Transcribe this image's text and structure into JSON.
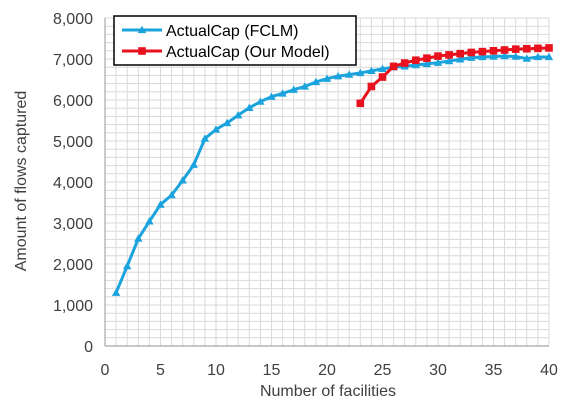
{
  "chart_data": {
    "type": "line",
    "title": "",
    "xlabel": "Number of facilities",
    "ylabel": "Amount of flows captured",
    "xlim": [
      0,
      40
    ],
    "ylim": [
      0,
      8000
    ],
    "x_ticks": [
      0,
      5,
      10,
      15,
      20,
      25,
      30,
      35,
      40
    ],
    "y_ticks": [
      0,
      1000,
      2000,
      3000,
      4000,
      5000,
      6000,
      7000,
      8000
    ],
    "x_tick_labels": [
      "0",
      "5",
      "10",
      "15",
      "20",
      "25",
      "30",
      "35",
      "40"
    ],
    "y_tick_labels": [
      "0",
      "1,000",
      "2,000",
      "3,000",
      "4,000",
      "5,000",
      "6,000",
      "7,000",
      "8,000"
    ],
    "grid": true,
    "legend_position": "top-left",
    "series": [
      {
        "name": "ActualCap (FCLM)",
        "color": "#1aa3dc",
        "marker": "triangle",
        "x": [
          1,
          2,
          3,
          4,
          5,
          6,
          7,
          8,
          9,
          10,
          11,
          12,
          13,
          14,
          15,
          16,
          17,
          18,
          19,
          20,
          21,
          22,
          23,
          24,
          25,
          26,
          27,
          28,
          29,
          30,
          31,
          32,
          33,
          34,
          35,
          36,
          37,
          38,
          39,
          40
        ],
        "y": [
          1300,
          1950,
          2620,
          3040,
          3450,
          3680,
          4040,
          4420,
          5060,
          5280,
          5440,
          5630,
          5810,
          5960,
          6080,
          6160,
          6250,
          6330,
          6440,
          6520,
          6580,
          6620,
          6660,
          6710,
          6760,
          6800,
          6820,
          6850,
          6880,
          6910,
          6950,
          6990,
          7030,
          7050,
          7060,
          7070,
          7060,
          7010,
          7050,
          7050
        ]
      },
      {
        "name": "ActualCap (Our Model)",
        "color": "#e8121e",
        "marker": "square",
        "x": [
          23,
          24,
          25,
          26,
          27,
          28,
          29,
          30,
          31,
          32,
          33,
          34,
          35,
          36,
          37,
          38,
          39,
          40
        ],
        "y": [
          5920,
          6330,
          6560,
          6820,
          6900,
          6970,
          7020,
          7070,
          7100,
          7130,
          7160,
          7180,
          7200,
          7220,
          7240,
          7250,
          7260,
          7270
        ]
      }
    ]
  }
}
